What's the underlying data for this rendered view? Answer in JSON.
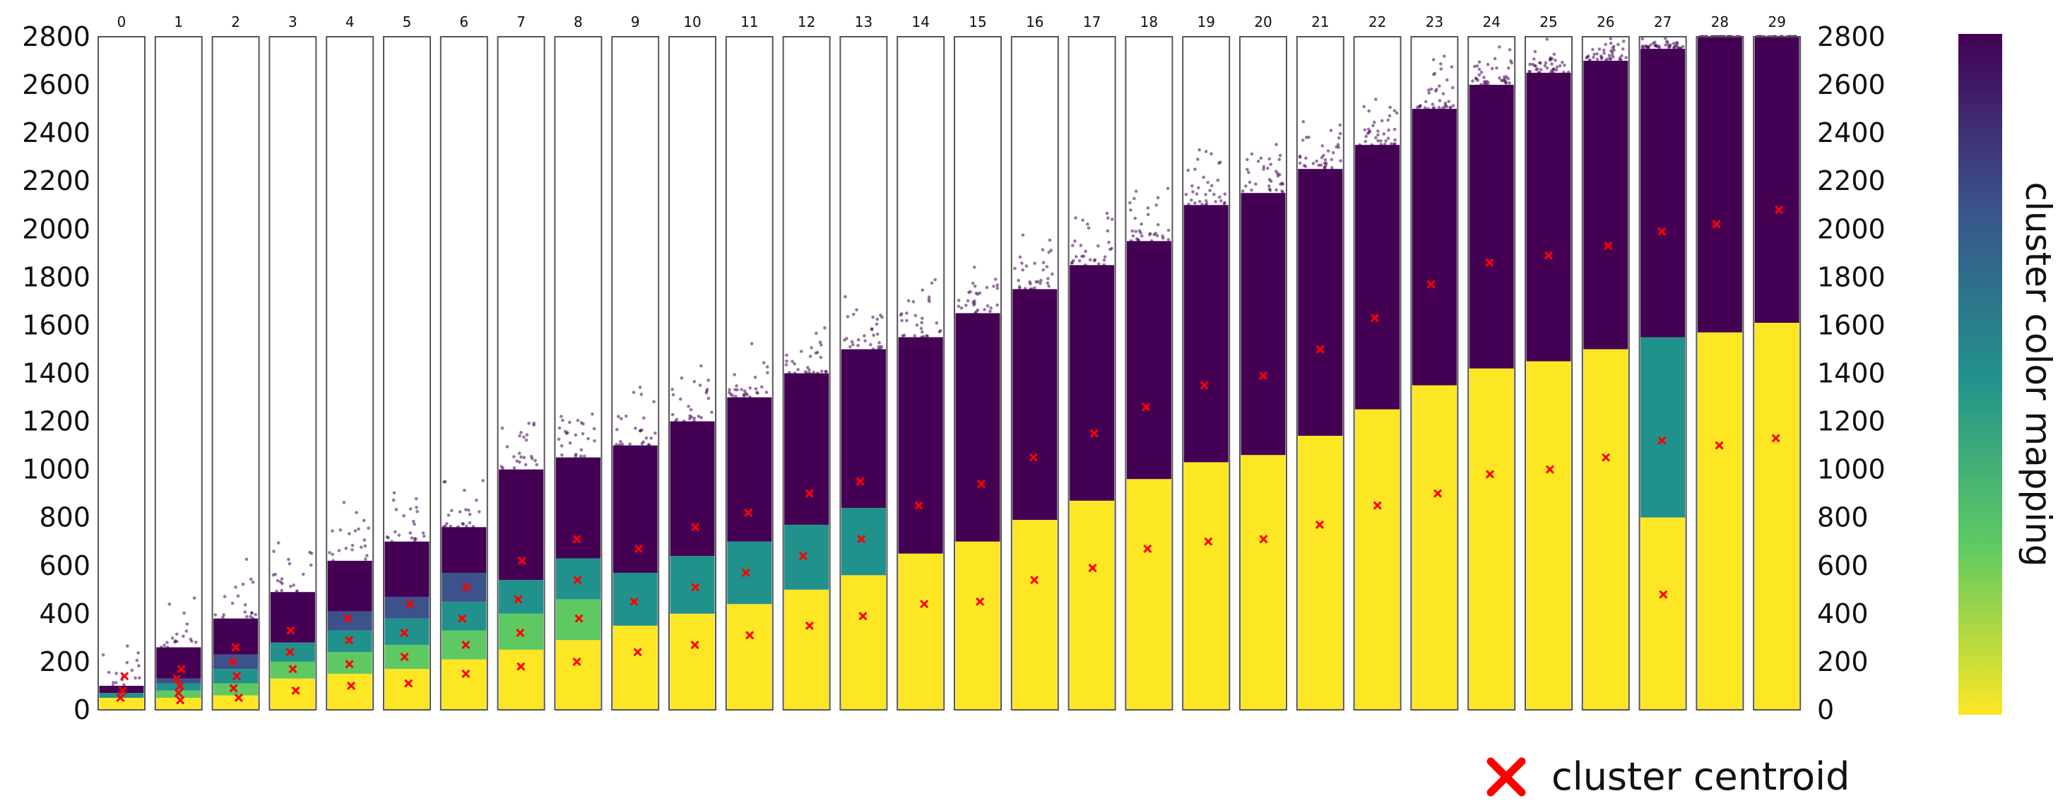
{
  "chart_data": {
    "type": "scatter",
    "title": "",
    "ylabel": "",
    "xlabel": "",
    "ylim": [
      0,
      2800
    ],
    "yticks": [
      0,
      200,
      400,
      600,
      800,
      1000,
      1200,
      1400,
      1600,
      1800,
      2000,
      2200,
      2400,
      2600,
      2800
    ],
    "ytick_labels": [
      "0",
      "200",
      "400",
      "600",
      "800",
      "1000",
      "1200",
      "1400",
      "1600",
      "1800",
      "2000",
      "2200",
      "2400",
      "2600",
      "2800"
    ],
    "panels": [
      {
        "label": "0",
        "bands": [
          {
            "from": 0,
            "to": 50,
            "color": "#fde725"
          },
          {
            "from": 50,
            "to": 70,
            "color": "#21918c"
          },
          {
            "from": 70,
            "to": 100,
            "color": "#440154"
          }
        ],
        "centroids": [
          50,
          80,
          140
        ]
      },
      {
        "label": "1",
        "bands": [
          {
            "from": 0,
            "to": 50,
            "color": "#fde725"
          },
          {
            "from": 50,
            "to": 80,
            "color": "#5ec962"
          },
          {
            "from": 80,
            "to": 110,
            "color": "#21918c"
          },
          {
            "from": 110,
            "to": 130,
            "color": "#3b528b"
          },
          {
            "from": 130,
            "to": 260,
            "color": "#440154"
          }
        ],
        "centroids": [
          40,
          70,
          100,
          130,
          170
        ]
      },
      {
        "label": "2",
        "bands": [
          {
            "from": 0,
            "to": 60,
            "color": "#fde725"
          },
          {
            "from": 60,
            "to": 110,
            "color": "#5ec962"
          },
          {
            "from": 110,
            "to": 170,
            "color": "#21918c"
          },
          {
            "from": 170,
            "to": 230,
            "color": "#3b528b"
          },
          {
            "from": 230,
            "to": 380,
            "color": "#440154"
          }
        ],
        "centroids": [
          50,
          90,
          140,
          200,
          260
        ]
      },
      {
        "label": "3",
        "bands": [
          {
            "from": 0,
            "to": 130,
            "color": "#fde725"
          },
          {
            "from": 130,
            "to": 200,
            "color": "#5ec962"
          },
          {
            "from": 200,
            "to": 280,
            "color": "#21918c"
          },
          {
            "from": 280,
            "to": 490,
            "color": "#440154"
          }
        ],
        "centroids": [
          80,
          170,
          240,
          330
        ]
      },
      {
        "label": "4",
        "bands": [
          {
            "from": 0,
            "to": 150,
            "color": "#fde725"
          },
          {
            "from": 150,
            "to": 240,
            "color": "#5ec962"
          },
          {
            "from": 240,
            "to": 330,
            "color": "#21918c"
          },
          {
            "from": 330,
            "to": 410,
            "color": "#3b528b"
          },
          {
            "from": 410,
            "to": 620,
            "color": "#440154"
          }
        ],
        "centroids": [
          100,
          190,
          290,
          380
        ]
      },
      {
        "label": "5",
        "bands": [
          {
            "from": 0,
            "to": 170,
            "color": "#fde725"
          },
          {
            "from": 170,
            "to": 270,
            "color": "#5ec962"
          },
          {
            "from": 270,
            "to": 380,
            "color": "#21918c"
          },
          {
            "from": 380,
            "to": 470,
            "color": "#3b528b"
          },
          {
            "from": 470,
            "to": 700,
            "color": "#440154"
          }
        ],
        "centroids": [
          110,
          220,
          320,
          440
        ]
      },
      {
        "label": "6",
        "bands": [
          {
            "from": 0,
            "to": 210,
            "color": "#fde725"
          },
          {
            "from": 210,
            "to": 330,
            "color": "#5ec962"
          },
          {
            "from": 330,
            "to": 450,
            "color": "#21918c"
          },
          {
            "from": 450,
            "to": 570,
            "color": "#3b528b"
          },
          {
            "from": 570,
            "to": 760,
            "color": "#440154"
          }
        ],
        "centroids": [
          150,
          270,
          380,
          510
        ]
      },
      {
        "label": "7",
        "bands": [
          {
            "from": 0,
            "to": 250,
            "color": "#fde725"
          },
          {
            "from": 250,
            "to": 400,
            "color": "#5ec962"
          },
          {
            "from": 400,
            "to": 540,
            "color": "#21918c"
          },
          {
            "from": 540,
            "to": 1000,
            "color": "#440154"
          }
        ],
        "centroids": [
          180,
          320,
          460,
          620
        ]
      },
      {
        "label": "8",
        "bands": [
          {
            "from": 0,
            "to": 290,
            "color": "#fde725"
          },
          {
            "from": 290,
            "to": 460,
            "color": "#5ec962"
          },
          {
            "from": 460,
            "to": 630,
            "color": "#21918c"
          },
          {
            "from": 630,
            "to": 1050,
            "color": "#440154"
          }
        ],
        "centroids": [
          200,
          380,
          540,
          710
        ]
      },
      {
        "label": "9",
        "bands": [
          {
            "from": 0,
            "to": 350,
            "color": "#fde725"
          },
          {
            "from": 350,
            "to": 570,
            "color": "#21918c"
          },
          {
            "from": 570,
            "to": 1100,
            "color": "#440154"
          }
        ],
        "centroids": [
          240,
          450,
          670
        ]
      },
      {
        "label": "10",
        "bands": [
          {
            "from": 0,
            "to": 400,
            "color": "#fde725"
          },
          {
            "from": 400,
            "to": 640,
            "color": "#21918c"
          },
          {
            "from": 640,
            "to": 1200,
            "color": "#440154"
          }
        ],
        "centroids": [
          270,
          510,
          760
        ]
      },
      {
        "label": "11",
        "bands": [
          {
            "from": 0,
            "to": 440,
            "color": "#fde725"
          },
          {
            "from": 440,
            "to": 700,
            "color": "#21918c"
          },
          {
            "from": 700,
            "to": 1300,
            "color": "#440154"
          }
        ],
        "centroids": [
          310,
          570,
          820
        ]
      },
      {
        "label": "12",
        "bands": [
          {
            "from": 0,
            "to": 500,
            "color": "#fde725"
          },
          {
            "from": 500,
            "to": 770,
            "color": "#21918c"
          },
          {
            "from": 770,
            "to": 1400,
            "color": "#440154"
          }
        ],
        "centroids": [
          350,
          640,
          900
        ]
      },
      {
        "label": "13",
        "bands": [
          {
            "from": 0,
            "to": 560,
            "color": "#fde725"
          },
          {
            "from": 560,
            "to": 840,
            "color": "#21918c"
          },
          {
            "from": 840,
            "to": 1500,
            "color": "#440154"
          }
        ],
        "centroids": [
          390,
          710,
          950
        ]
      },
      {
        "label": "14",
        "bands": [
          {
            "from": 0,
            "to": 650,
            "color": "#fde725"
          },
          {
            "from": 650,
            "to": 1550,
            "color": "#440154"
          }
        ],
        "centroids": [
          440,
          850
        ]
      },
      {
        "label": "15",
        "bands": [
          {
            "from": 0,
            "to": 700,
            "color": "#fde725"
          },
          {
            "from": 700,
            "to": 1650,
            "color": "#440154"
          }
        ],
        "centroids": [
          450,
          940
        ]
      },
      {
        "label": "16",
        "bands": [
          {
            "from": 0,
            "to": 790,
            "color": "#fde725"
          },
          {
            "from": 790,
            "to": 1750,
            "color": "#440154"
          }
        ],
        "centroids": [
          540,
          1050
        ]
      },
      {
        "label": "17",
        "bands": [
          {
            "from": 0,
            "to": 870,
            "color": "#fde725"
          },
          {
            "from": 870,
            "to": 1850,
            "color": "#440154"
          }
        ],
        "centroids": [
          590,
          1150
        ]
      },
      {
        "label": "18",
        "bands": [
          {
            "from": 0,
            "to": 960,
            "color": "#fde725"
          },
          {
            "from": 960,
            "to": 1950,
            "color": "#440154"
          }
        ],
        "centroids": [
          670,
          1260
        ]
      },
      {
        "label": "19",
        "bands": [
          {
            "from": 0,
            "to": 1030,
            "color": "#fde725"
          },
          {
            "from": 1030,
            "to": 2100,
            "color": "#440154"
          }
        ],
        "centroids": [
          700,
          1350
        ]
      },
      {
        "label": "20",
        "bands": [
          {
            "from": 0,
            "to": 1060,
            "color": "#fde725"
          },
          {
            "from": 1060,
            "to": 2150,
            "color": "#440154"
          }
        ],
        "centroids": [
          710,
          1390
        ]
      },
      {
        "label": "21",
        "bands": [
          {
            "from": 0,
            "to": 1140,
            "color": "#fde725"
          },
          {
            "from": 1140,
            "to": 2250,
            "color": "#440154"
          }
        ],
        "centroids": [
          770,
          1500
        ]
      },
      {
        "label": "22",
        "bands": [
          {
            "from": 0,
            "to": 1250,
            "color": "#fde725"
          },
          {
            "from": 1250,
            "to": 2350,
            "color": "#440154"
          }
        ],
        "centroids": [
          850,
          1630
        ]
      },
      {
        "label": "23",
        "bands": [
          {
            "from": 0,
            "to": 1350,
            "color": "#fde725"
          },
          {
            "from": 1350,
            "to": 2500,
            "color": "#440154"
          }
        ],
        "centroids": [
          900,
          1770
        ]
      },
      {
        "label": "24",
        "bands": [
          {
            "from": 0,
            "to": 1420,
            "color": "#fde725"
          },
          {
            "from": 1420,
            "to": 2600,
            "color": "#440154"
          }
        ],
        "centroids": [
          980,
          1860
        ]
      },
      {
        "label": "25",
        "bands": [
          {
            "from": 0,
            "to": 1450,
            "color": "#fde725"
          },
          {
            "from": 1450,
            "to": 2650,
            "color": "#440154"
          }
        ],
        "centroids": [
          1000,
          1890
        ]
      },
      {
        "label": "26",
        "bands": [
          {
            "from": 0,
            "to": 1500,
            "color": "#fde725"
          },
          {
            "from": 1500,
            "to": 2700,
            "color": "#440154"
          }
        ],
        "centroids": [
          1050,
          1930
        ]
      },
      {
        "label": "27",
        "bands": [
          {
            "from": 0,
            "to": 800,
            "color": "#fde725"
          },
          {
            "from": 800,
            "to": 1550,
            "color": "#21918c"
          },
          {
            "from": 1550,
            "to": 2750,
            "color": "#440154"
          }
        ],
        "centroids": [
          480,
          1120,
          1990
        ]
      },
      {
        "label": "28",
        "bands": [
          {
            "from": 0,
            "to": 1570,
            "color": "#fde725"
          },
          {
            "from": 1570,
            "to": 2800,
            "color": "#440154"
          }
        ],
        "centroids": [
          1100,
          2020
        ]
      },
      {
        "label": "29",
        "bands": [
          {
            "from": 0,
            "to": 1610,
            "color": "#fde725"
          },
          {
            "from": 1610,
            "to": 2800,
            "color": "#440154"
          }
        ],
        "centroids": [
          1130,
          2080
        ]
      }
    ],
    "colorbar": {
      "label": "cluster color mapping",
      "colors": [
        "#fde725",
        "#5ec962",
        "#21918c",
        "#3b528b",
        "#440154"
      ]
    },
    "legend": {
      "label": "cluster centroid",
      "marker_color": "#ff0000",
      "position": "bottom-right"
    }
  }
}
